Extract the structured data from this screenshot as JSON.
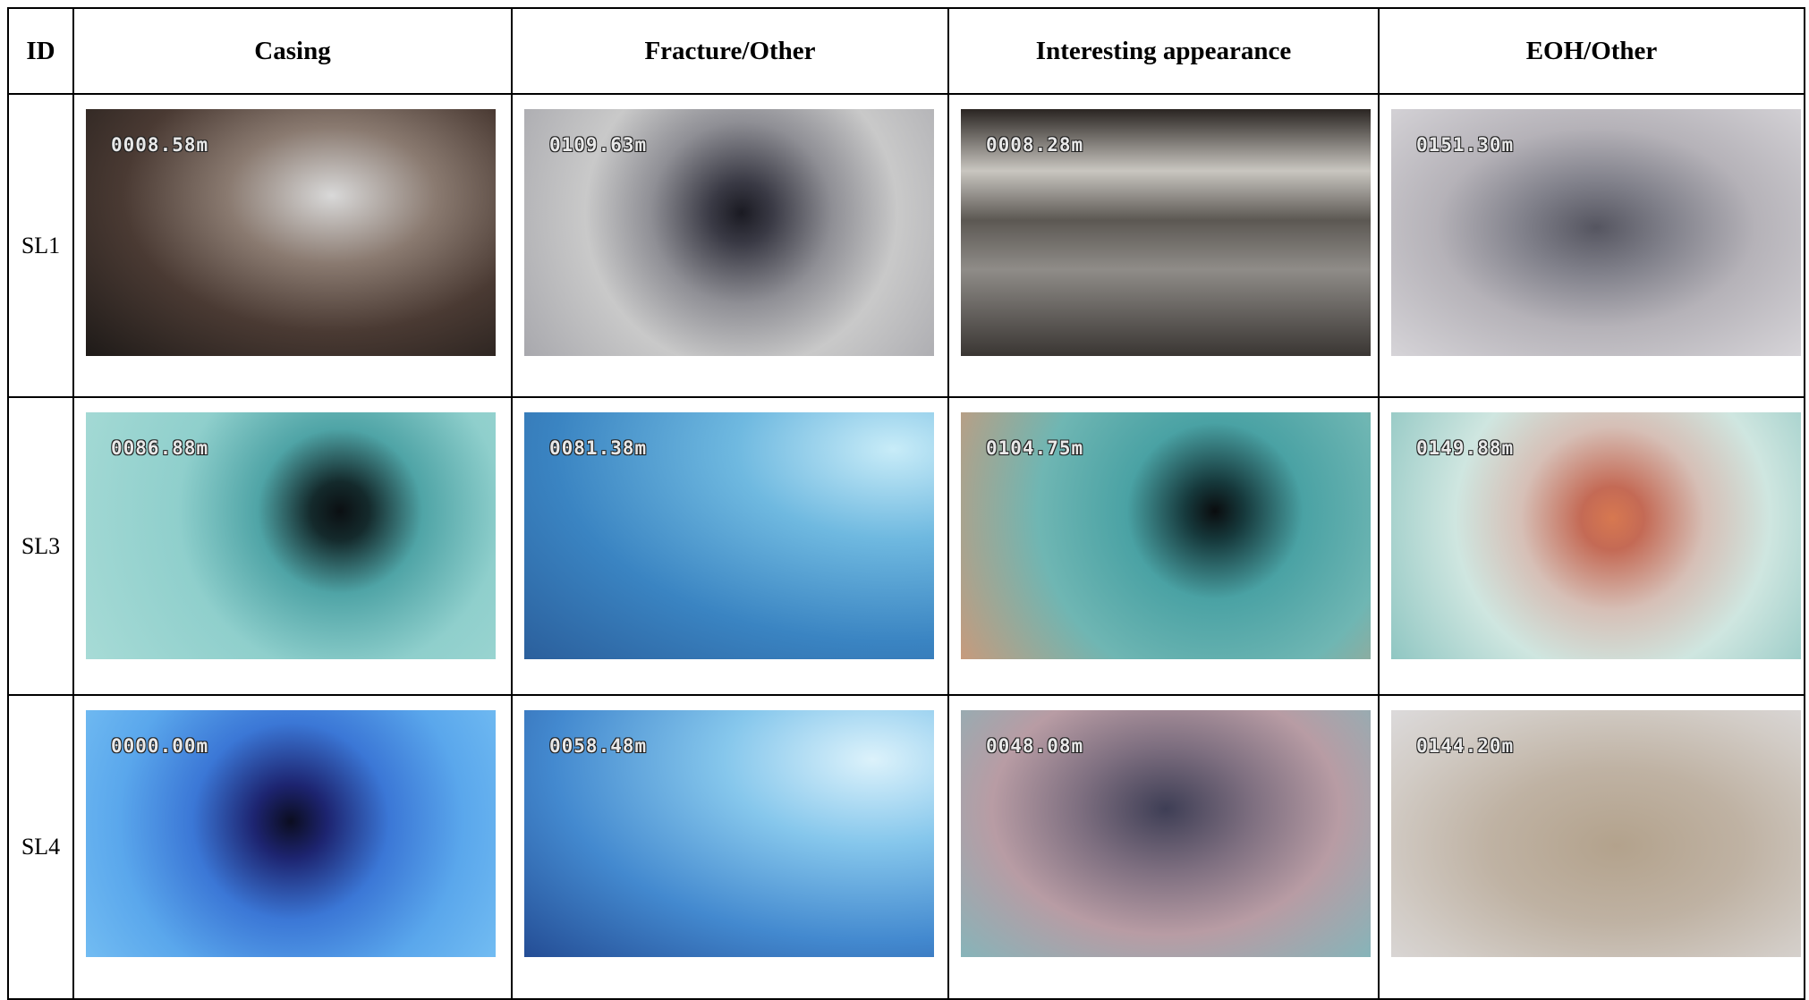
{
  "table": {
    "columns": [
      "ID",
      "Casing",
      "Fracture/Other",
      "Interesting appearance",
      "EOH/Other"
    ],
    "rows": [
      {
        "id": "SL1",
        "depths": [
          "0008.58m",
          "0109.63m",
          "0008.28m",
          "0151.30m"
        ]
      },
      {
        "id": "SL3",
        "depths": [
          "0086.88m",
          "0081.38m",
          "0104.75m",
          "0149.88m"
        ]
      },
      {
        "id": "SL4",
        "depths": [
          "0000.00m",
          "0058.48m",
          "0048.08m",
          "0144.20m"
        ]
      }
    ]
  }
}
